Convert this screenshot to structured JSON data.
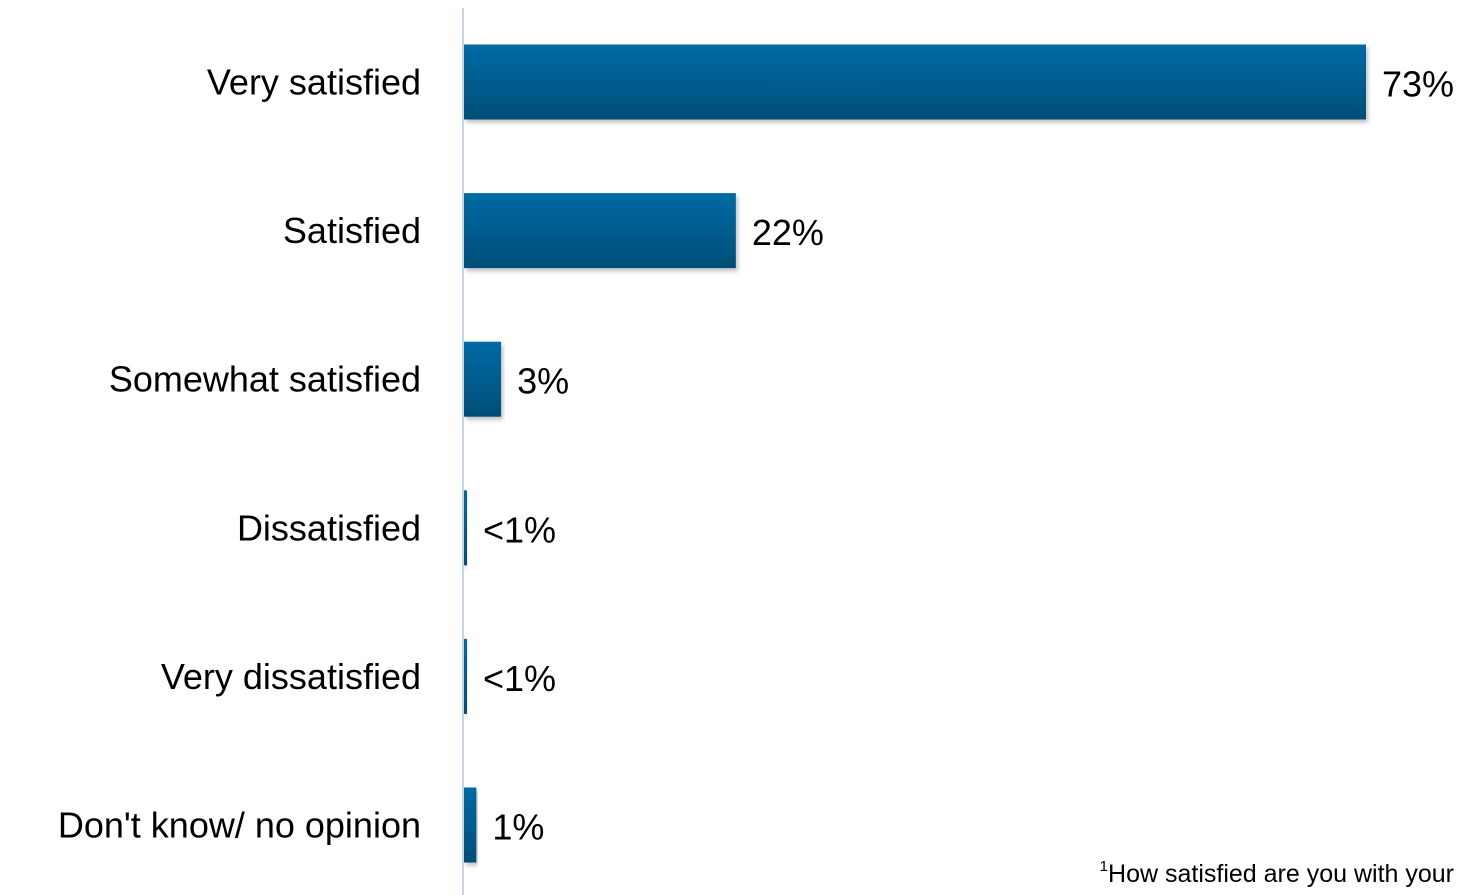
{
  "chart_data": {
    "type": "bar",
    "orientation": "horizontal",
    "categories": [
      "Very satisfied",
      "Satisfied",
      "Somewhat satisfied",
      "Dissatisfied",
      "Very dissatisfied",
      "Don't know/ no opinion"
    ],
    "values": [
      73,
      22,
      3,
      0.2,
      0.2,
      1
    ],
    "value_labels": [
      "73%",
      "22%",
      "3%",
      "<1%",
      "<1%",
      "1%"
    ],
    "xlim": [
      0,
      73
    ],
    "grid": false,
    "bar_color_top": "#006aa4",
    "bar_color_bottom": "#004e78",
    "axis_color": "#c9d6e6"
  },
  "footnote": {
    "marker": "1",
    "text": "How satisfied are you with your"
  }
}
